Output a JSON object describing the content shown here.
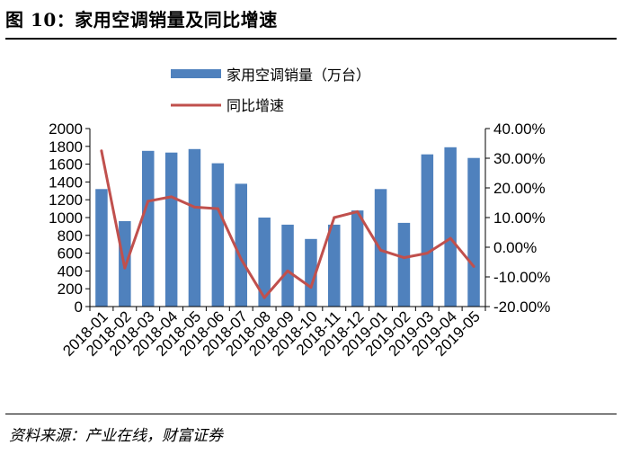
{
  "figure_title": "图 10：家用空调销量及同比增速",
  "source_note": "资料来源：产业在线，财富证券",
  "chart_data": {
    "type": "bar+line",
    "categories": [
      "2018-01",
      "2018-02",
      "2018-03",
      "2018-04",
      "2018-05",
      "2018-06",
      "2018-07",
      "2018-08",
      "2018-09",
      "2018-10",
      "2018-11",
      "2018-12",
      "2019-01",
      "2019-02",
      "2019-03",
      "2019-04",
      "2019-05"
    ],
    "series": [
      {
        "name": "家用空调销量（万台）",
        "type": "bar",
        "axis": "left",
        "color": "#4F81BD",
        "values": [
          1320,
          960,
          1750,
          1730,
          1770,
          1610,
          1380,
          1000,
          920,
          760,
          920,
          1080,
          1320,
          940,
          1710,
          1790,
          1670
        ]
      },
      {
        "name": "同比增速",
        "type": "line",
        "axis": "right",
        "color": "#C0504D",
        "values": [
          32.5,
          -7.0,
          15.5,
          17.0,
          13.5,
          13.0,
          -4.0,
          -17.0,
          -8.0,
          -13.5,
          10.0,
          12.0,
          -1.0,
          -3.5,
          -2.0,
          3.0,
          -6.5
        ]
      }
    ],
    "y_left": {
      "ylim": [
        0,
        2000
      ],
      "ticks": [
        "0",
        "200",
        "400",
        "600",
        "800",
        "1000",
        "1200",
        "1400",
        "1600",
        "1800",
        "2000"
      ]
    },
    "y_right": {
      "ylim": [
        -20,
        40
      ],
      "ticks": [
        "-20.00%",
        "-10.00%",
        "0.00%",
        "10.00%",
        "20.00%",
        "30.00%",
        "40.00%"
      ]
    },
    "legend": {
      "position": "top-center",
      "entries": [
        "家用空调销量（万台）",
        "同比增速"
      ]
    },
    "grid": false
  }
}
